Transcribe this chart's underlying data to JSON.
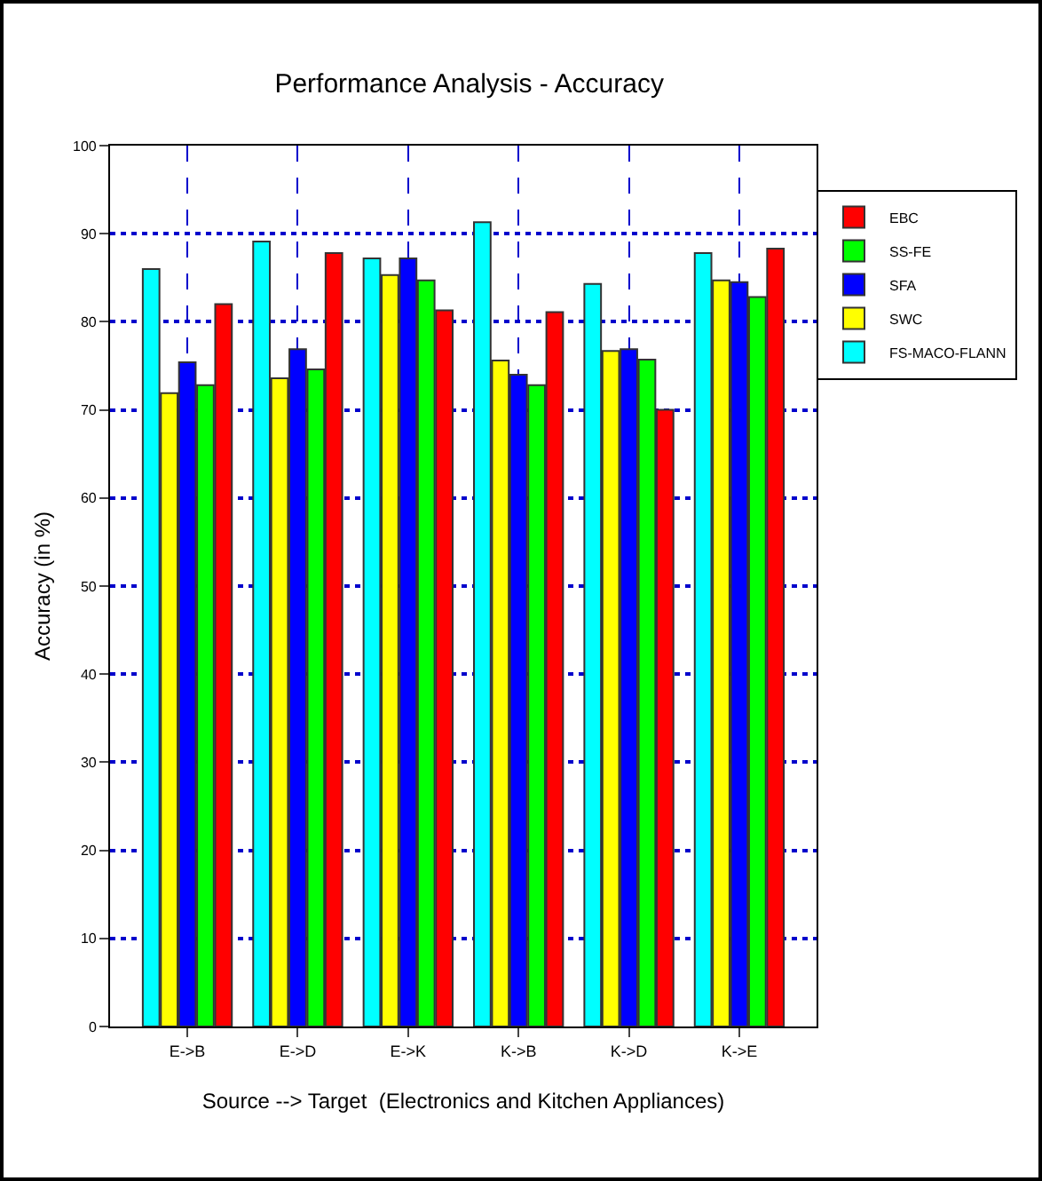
{
  "chart_data": {
    "type": "bar",
    "title": "Performance Analysis - Accuracy",
    "xlabel": "Source --> Target  (Electronics and Kitchen Appliances)",
    "ylabel": "Accuracy (in %)",
    "categories": [
      "E->B",
      "E->D",
      "E->K",
      "K->B",
      "K->D",
      "K->E"
    ],
    "series": [
      {
        "name": "FS-MACO-FLANN",
        "color": "#00ffff",
        "values": [
          86.0,
          89.1,
          87.2,
          91.3,
          84.3,
          87.8
        ]
      },
      {
        "name": "SWC",
        "color": "#ffff00",
        "values": [
          71.9,
          73.6,
          85.3,
          75.6,
          76.7,
          84.7
        ]
      },
      {
        "name": "SFA",
        "color": "#0000ff",
        "values": [
          75.4,
          76.9,
          87.2,
          74.0,
          76.9,
          84.5
        ]
      },
      {
        "name": "SS-FE",
        "color": "#00ff00",
        "values": [
          72.8,
          74.6,
          84.7,
          72.8,
          75.7,
          82.8
        ]
      },
      {
        "name": "EBC",
        "color": "#ff0000",
        "values": [
          82.0,
          87.8,
          81.3,
          81.1,
          70.0,
          88.3
        ]
      }
    ],
    "ylim": [
      0,
      100
    ],
    "yticks": [
      0,
      10,
      20,
      30,
      40,
      50,
      60,
      70,
      80,
      90,
      100
    ],
    "grid": true,
    "legend": "top right"
  }
}
